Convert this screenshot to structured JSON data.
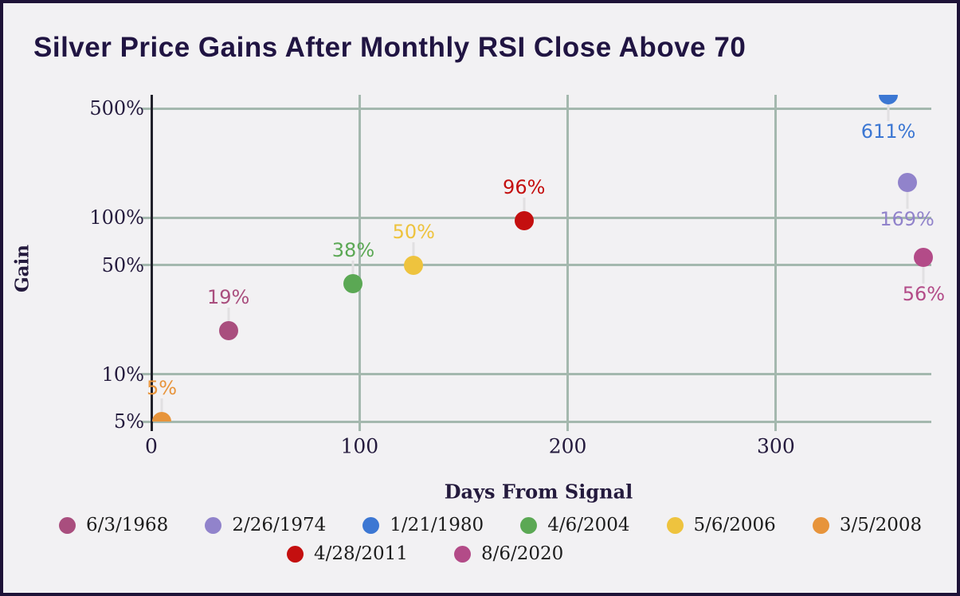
{
  "title": "Silver Price Gains After Monthly RSI Close Above 70",
  "colors": {
    "background": "#f2f1f3",
    "frame_border": "#1e1338",
    "title_text": "#201442",
    "tick_text": "#241a3d",
    "gridline": "#a4b8ae",
    "axis_line": "#20202a",
    "leader_line": "#e1e0e2",
    "legend_text": "#1c1c1c"
  },
  "chart_data": {
    "type": "scatter",
    "title": "Silver Price Gains After Monthly RSI Close Above 70",
    "xlabel": "Days From Signal",
    "ylabel": "Gain",
    "x_scale": "linear",
    "y_scale": "log",
    "xlim": [
      0,
      375
    ],
    "ylim_pct": [
      5,
      650
    ],
    "x_ticks": [
      0,
      100,
      200,
      300
    ],
    "y_ticks": [
      {
        "value": 5,
        "label": "5%"
      },
      {
        "value": 10,
        "label": "10%"
      },
      {
        "value": 50,
        "label": "50%"
      },
      {
        "value": 100,
        "label": "100%"
      },
      {
        "value": 500,
        "label": "500%"
      }
    ],
    "grid": true,
    "legend_position": "bottom",
    "series": [
      {
        "name": "6/3/1968",
        "color": "#a94e7e",
        "days": 37,
        "gain_pct": 19,
        "label": "19%",
        "label_pos": "above"
      },
      {
        "name": "2/26/1974",
        "color": "#9183cb",
        "days": 363,
        "gain_pct": 169,
        "label": "169%",
        "label_pos": "below"
      },
      {
        "name": "1/21/1980",
        "color": "#3c77d3",
        "days": 354,
        "gain_pct": 611,
        "label": "611%",
        "label_pos": "below"
      },
      {
        "name": "4/6/2004",
        "color": "#5ba854",
        "days": 97,
        "gain_pct": 38,
        "label": "38%",
        "label_pos": "above"
      },
      {
        "name": "5/6/2006",
        "color": "#eec33e",
        "days": 126,
        "gain_pct": 50,
        "label": "50%",
        "label_pos": "above"
      },
      {
        "name": "3/5/2008",
        "color": "#e7943b",
        "days": 5,
        "gain_pct": 5,
        "label": "5%",
        "label_pos": "above"
      },
      {
        "name": "4/28/2011",
        "color": "#c40f0f",
        "days": 179,
        "gain_pct": 96,
        "label": "96%",
        "label_pos": "above"
      },
      {
        "name": "8/6/2020",
        "color": "#b34b88",
        "days": 371,
        "gain_pct": 56,
        "label": "56%",
        "label_pos": "below"
      }
    ],
    "legend_rows": [
      [
        "6/3/1968",
        "2/26/1974",
        "1/21/1980",
        "4/6/2004",
        "5/6/2006",
        "3/5/2008"
      ],
      [
        "4/28/2011",
        "8/6/2020"
      ]
    ]
  }
}
